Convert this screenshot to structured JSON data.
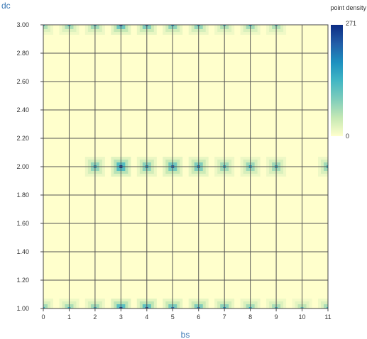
{
  "chart_data": {
    "type": "heatmap",
    "xlabel": "bs",
    "ylabel": "dc",
    "xlim": [
      0,
      11
    ],
    "ylim": [
      1.0,
      3.0
    ],
    "x_ticks": [
      "0",
      "1",
      "2",
      "3",
      "4",
      "5",
      "6",
      "7",
      "8",
      "9",
      "10",
      "11"
    ],
    "y_ticks": [
      "1.00",
      "1.20",
      "1.40",
      "1.60",
      "1.80",
      "2.00",
      "2.20",
      "2.40",
      "2.60",
      "2.80",
      "3.00"
    ],
    "colorbar": {
      "title": "point density",
      "min": 0,
      "max": 271,
      "min_label": "0",
      "max_label": "271"
    },
    "colorscale": [
      "#ffffcc",
      "#c7e9b4",
      "#7fcdbb",
      "#41b6c4",
      "#1d91c0",
      "#225ea8",
      "#0c2c84"
    ],
    "grid": true,
    "clusters": [
      {
        "x": 0,
        "y": 3.0,
        "density": 130
      },
      {
        "x": 1,
        "y": 3.0,
        "density": 140
      },
      {
        "x": 2,
        "y": 3.0,
        "density": 150
      },
      {
        "x": 3,
        "y": 3.0,
        "density": 230
      },
      {
        "x": 4,
        "y": 3.0,
        "density": 200
      },
      {
        "x": 5,
        "y": 3.0,
        "density": 180
      },
      {
        "x": 6,
        "y": 3.0,
        "density": 170
      },
      {
        "x": 7,
        "y": 3.0,
        "density": 130
      },
      {
        "x": 8,
        "y": 3.0,
        "density": 150
      },
      {
        "x": 9,
        "y": 3.0,
        "density": 130
      },
      {
        "x": 2,
        "y": 2.0,
        "density": 170
      },
      {
        "x": 3,
        "y": 2.0,
        "density": 271
      },
      {
        "x": 4,
        "y": 2.0,
        "density": 180
      },
      {
        "x": 5,
        "y": 2.0,
        "density": 220
      },
      {
        "x": 6,
        "y": 2.0,
        "density": 200
      },
      {
        "x": 7,
        "y": 2.0,
        "density": 150
      },
      {
        "x": 8,
        "y": 2.0,
        "density": 160
      },
      {
        "x": 9,
        "y": 2.0,
        "density": 150
      },
      {
        "x": 11,
        "y": 2.0,
        "density": 150
      },
      {
        "x": 0,
        "y": 1.0,
        "density": 150
      },
      {
        "x": 1,
        "y": 1.0,
        "density": 140
      },
      {
        "x": 2,
        "y": 1.0,
        "density": 150
      },
      {
        "x": 3,
        "y": 1.0,
        "density": 260
      },
      {
        "x": 4,
        "y": 1.0,
        "density": 250
      },
      {
        "x": 5,
        "y": 1.0,
        "density": 210
      },
      {
        "x": 6,
        "y": 1.0,
        "density": 200
      },
      {
        "x": 7,
        "y": 1.0,
        "density": 180
      },
      {
        "x": 8,
        "y": 1.0,
        "density": 150
      },
      {
        "x": 9,
        "y": 1.0,
        "density": 140
      },
      {
        "x": 10,
        "y": 1.0,
        "density": 110
      },
      {
        "x": 11,
        "y": 1.0,
        "density": 140
      }
    ]
  }
}
